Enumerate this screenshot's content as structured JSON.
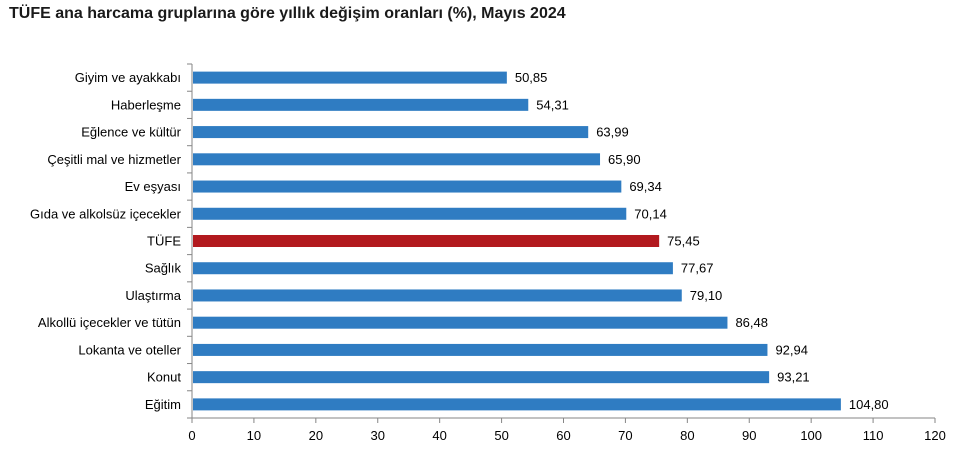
{
  "chart_data": {
    "type": "bar",
    "orientation": "horizontal",
    "title": "TÜFE ana harcama gruplarına göre yıllık değişim oranları (%), Mayıs 2024",
    "xlabel": "",
    "ylabel": "",
    "categories": [
      "Giyim ve ayakkabı",
      "Haberleşme",
      "Eğlence ve kültür",
      "Çeşitli mal ve hizmetler",
      "Ev eşyası",
      "Gıda ve alkolsüz içecekler",
      "TÜFE",
      "Sağlık",
      "Ulaştırma",
      "Alkollü içecekler ve tütün",
      "Lokanta ve oteller",
      "Konut",
      "Eğitim"
    ],
    "values": [
      50.85,
      54.31,
      63.99,
      65.9,
      69.34,
      70.14,
      75.45,
      77.67,
      79.1,
      86.48,
      92.94,
      93.21,
      104.8
    ],
    "value_labels": [
      "50,85",
      "54,31",
      "63,99",
      "65,90",
      "69,34",
      "70,14",
      "75,45",
      "77,67",
      "79,10",
      "86,48",
      "92,94",
      "93,21",
      "104,80"
    ],
    "highlight_category": "TÜFE",
    "xlim": [
      0,
      120
    ],
    "xticks": [
      0,
      10,
      20,
      30,
      40,
      50,
      60,
      70,
      80,
      90,
      100,
      110,
      120
    ],
    "grid": false,
    "legend": "none",
    "colors": {
      "bar": "#2f7cc2",
      "highlight": "#b2191e",
      "axis": "#868686"
    }
  }
}
